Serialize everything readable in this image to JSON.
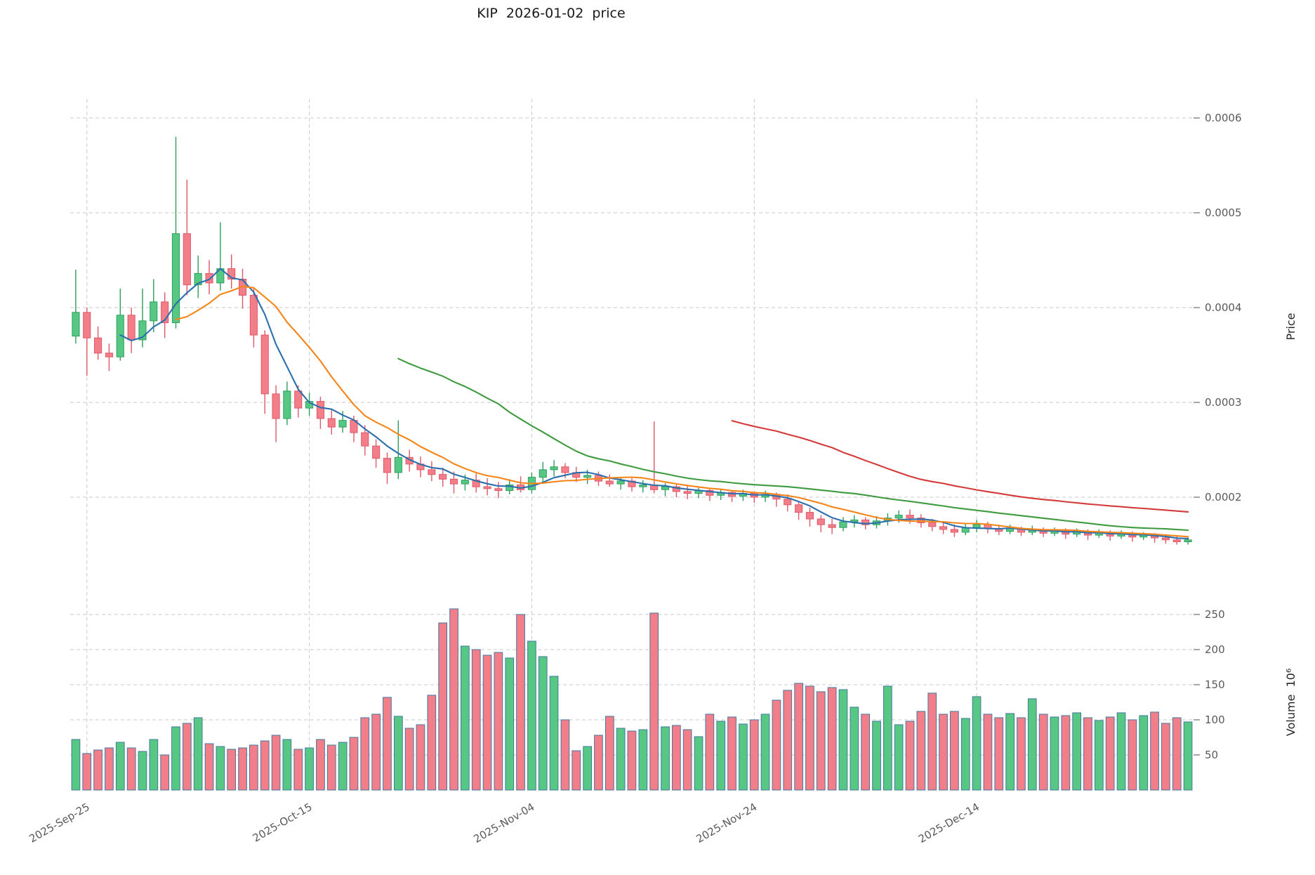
{
  "chart_data": {
    "type": "candlestick",
    "title": "KIP  2026-01-02  price",
    "price_axis": {
      "label": "Price",
      "min": 0.00014,
      "max": 0.00062,
      "ticks": [
        0.0002,
        0.0003,
        0.0004,
        0.0005,
        0.0006
      ],
      "tick_labels": [
        "0.0002",
        "0.0003",
        "0.0004",
        "0.0005",
        "0.0006"
      ]
    },
    "volume_axis": {
      "label": "Volume  10⁶",
      "unit": 1000000,
      "min": 0,
      "max": 250,
      "ticks": [
        50,
        100,
        150,
        200,
        250
      ],
      "tick_labels": [
        "50",
        "100",
        "150",
        "200",
        "250"
      ]
    },
    "x_axis": {
      "tick_indices": [
        1,
        21,
        41,
        61,
        81
      ],
      "tick_labels": [
        "2025-Sep-25",
        "2025-Oct-15",
        "2025-Nov-04",
        "2025-Nov-24",
        "2025-Dec-14"
      ]
    },
    "moving_averages": [
      {
        "window": 5,
        "color": "#2b6fad"
      },
      {
        "window": 10,
        "color": "#f58518"
      },
      {
        "window": 30,
        "color": "#3f9b3f"
      },
      {
        "window": 60,
        "color": "#d43a3a"
      }
    ],
    "colors": {
      "up": "#57c784",
      "up_edge": "#2e9e5b",
      "down": "#f27e8a",
      "down_edge": "#df5866",
      "volume_edge": "#46789f",
      "grid": "#c9c9c9",
      "tick_text": "#595959",
      "axis_title_text": "#262626"
    },
    "candle_columns": [
      "date",
      "open",
      "high",
      "low",
      "close",
      "volume_millions"
    ],
    "candles": [
      [
        "2025-09-24",
        0.00037,
        0.00044,
        0.000362,
        0.000395,
        72
      ],
      [
        "2025-09-25",
        0.000395,
        0.0004,
        0.000328,
        0.000368,
        52
      ],
      [
        "2025-09-26",
        0.000368,
        0.00038,
        0.000345,
        0.000352,
        57
      ],
      [
        "2025-09-27",
        0.000352,
        0.000362,
        0.000333,
        0.000348,
        60
      ],
      [
        "2025-09-28",
        0.000348,
        0.00042,
        0.000344,
        0.000392,
        68
      ],
      [
        "2025-09-29",
        0.000392,
        0.0004,
        0.000352,
        0.000366,
        60
      ],
      [
        "2025-09-30",
        0.000366,
        0.00042,
        0.000358,
        0.000386,
        55
      ],
      [
        "2025-10-01",
        0.000386,
        0.00043,
        0.000374,
        0.000406,
        72
      ],
      [
        "2025-10-02",
        0.000406,
        0.000416,
        0.000368,
        0.000384,
        50
      ],
      [
        "2025-10-03",
        0.000384,
        0.00058,
        0.000378,
        0.000478,
        90
      ],
      [
        "2025-10-04",
        0.000478,
        0.000535,
        0.000413,
        0.000424,
        95
      ],
      [
        "2025-10-05",
        0.000424,
        0.000455,
        0.00041,
        0.000436,
        103
      ],
      [
        "2025-10-06",
        0.000436,
        0.00045,
        0.000414,
        0.000426,
        66
      ],
      [
        "2025-10-07",
        0.000426,
        0.00049,
        0.000418,
        0.000441,
        62
      ],
      [
        "2025-10-08",
        0.000441,
        0.000456,
        0.00042,
        0.00043,
        58
      ],
      [
        "2025-10-09",
        0.00043,
        0.000441,
        0.000399,
        0.000413,
        60
      ],
      [
        "2025-10-10",
        0.000413,
        0.00042,
        0.000358,
        0.000371,
        64
      ],
      [
        "2025-10-11",
        0.000371,
        0.000376,
        0.000288,
        0.000309,
        70
      ],
      [
        "2025-10-12",
        0.000309,
        0.000318,
        0.000258,
        0.000283,
        78
      ],
      [
        "2025-10-13",
        0.000283,
        0.000322,
        0.000276,
        0.000312,
        72
      ],
      [
        "2025-10-14",
        0.000312,
        0.000318,
        0.000284,
        0.000294,
        58
      ],
      [
        "2025-10-15",
        0.000294,
        0.00031,
        0.000286,
        0.000301,
        60
      ],
      [
        "2025-10-16",
        0.000301,
        0.000306,
        0.000272,
        0.000283,
        72
      ],
      [
        "2025-10-17",
        0.000283,
        0.000292,
        0.000266,
        0.000274,
        64
      ],
      [
        "2025-10-18",
        0.000274,
        0.000291,
        0.000268,
        0.000281,
        68
      ],
      [
        "2025-10-19",
        0.000281,
        0.000286,
        0.000258,
        0.000268,
        75
      ],
      [
        "2025-10-20",
        0.000268,
        0.000276,
        0.000244,
        0.000254,
        103
      ],
      [
        "2025-10-21",
        0.000254,
        0.000261,
        0.000231,
        0.000241,
        108
      ],
      [
        "2025-10-22",
        0.000241,
        0.000247,
        0.000214,
        0.000226,
        132
      ],
      [
        "2025-10-23",
        0.000226,
        0.000281,
        0.000219,
        0.000242,
        105
      ],
      [
        "2025-10-24",
        0.000242,
        0.00025,
        0.000227,
        0.000235,
        88
      ],
      [
        "2025-10-25",
        0.000235,
        0.000243,
        0.000221,
        0.000229,
        93
      ],
      [
        "2025-10-26",
        0.000229,
        0.000238,
        0.000217,
        0.000224,
        135
      ],
      [
        "2025-10-27",
        0.000224,
        0.000231,
        0.000211,
        0.000219,
        238
      ],
      [
        "2025-10-28",
        0.000219,
        0.000227,
        0.000204,
        0.000214,
        258
      ],
      [
        "2025-10-29",
        0.000214,
        0.000224,
        0.000207,
        0.000218,
        205
      ],
      [
        "2025-10-30",
        0.000218,
        0.000225,
        0.000205,
        0.000211,
        200
      ],
      [
        "2025-10-31",
        0.000211,
        0.00022,
        0.000202,
        0.000209,
        192
      ],
      [
        "2025-11-01",
        0.000209,
        0.000216,
        0.000199,
        0.000207,
        196
      ],
      [
        "2025-11-02",
        0.000207,
        0.000219,
        0.000203,
        0.000213,
        188
      ],
      [
        "2025-11-03",
        0.000213,
        0.000222,
        0.000205,
        0.000208,
        250
      ],
      [
        "2025-11-04",
        0.000208,
        0.000226,
        0.000204,
        0.000221,
        212
      ],
      [
        "2025-11-05",
        0.000221,
        0.000237,
        0.000216,
        0.000229,
        190
      ],
      [
        "2025-11-06",
        0.000229,
        0.000239,
        0.000222,
        0.000232,
        162
      ],
      [
        "2025-11-07",
        0.000232,
        0.000236,
        0.00022,
        0.000226,
        100
      ],
      [
        "2025-11-08",
        0.000226,
        0.000232,
        0.000216,
        0.000221,
        56
      ],
      [
        "2025-11-09",
        0.000221,
        0.000229,
        0.000214,
        0.000223,
        62
      ],
      [
        "2025-11-10",
        0.000223,
        0.000227,
        0.000212,
        0.000217,
        78
      ],
      [
        "2025-11-11",
        0.000217,
        0.000224,
        0.000211,
        0.000214,
        105
      ],
      [
        "2025-11-12",
        0.000214,
        0.000221,
        0.000208,
        0.000217,
        88
      ],
      [
        "2025-11-13",
        0.000217,
        0.00022,
        0.000206,
        0.000211,
        84
      ],
      [
        "2025-11-14",
        0.000211,
        0.000218,
        0.000205,
        0.000213,
        86
      ],
      [
        "2025-11-15",
        0.000213,
        0.00028,
        0.000204,
        0.000208,
        252
      ],
      [
        "2025-11-16",
        0.000208,
        0.000215,
        0.000201,
        0.000211,
        90
      ],
      [
        "2025-11-17",
        0.000211,
        0.000214,
        0.0002,
        0.000206,
        92
      ],
      [
        "2025-11-18",
        0.000206,
        0.000212,
        0.000198,
        0.000204,
        86
      ],
      [
        "2025-11-19",
        0.000204,
        0.00021,
        0.000199,
        0.000207,
        76
      ],
      [
        "2025-11-20",
        0.000207,
        0.00021,
        0.000196,
        0.000202,
        108
      ],
      [
        "2025-11-21",
        0.000202,
        0.000209,
        0.000197,
        0.000205,
        98
      ],
      [
        "2025-11-22",
        0.000205,
        0.000207,
        0.000195,
        0.000201,
        104
      ],
      [
        "2025-11-23",
        0.000201,
        0.000208,
        0.000196,
        0.000204,
        94
      ],
      [
        "2025-11-24",
        0.000204,
        0.000206,
        0.000194,
        0.0002,
        100
      ],
      [
        "2025-11-25",
        0.0002,
        0.000207,
        0.000195,
        0.000203,
        108
      ],
      [
        "2025-11-26",
        0.000203,
        0.000205,
        0.00019,
        0.000198,
        128
      ],
      [
        "2025-11-27",
        0.000198,
        0.000203,
        0.000185,
        0.000192,
        142
      ],
      [
        "2025-11-28",
        0.000192,
        0.000195,
        0.000176,
        0.000184,
        152
      ],
      [
        "2025-11-29",
        0.000184,
        0.000189,
        0.000169,
        0.000177,
        148
      ],
      [
        "2025-11-30",
        0.000177,
        0.000181,
        0.000163,
        0.000171,
        140
      ],
      [
        "2025-12-01",
        0.000171,
        0.000177,
        0.000161,
        0.000168,
        146
      ],
      [
        "2025-12-02",
        0.000168,
        0.000179,
        0.000164,
        0.000174,
        143
      ],
      [
        "2025-12-03",
        0.000174,
        0.000181,
        0.000168,
        0.000176,
        118
      ],
      [
        "2025-12-04",
        0.000176,
        0.000179,
        0.000166,
        0.000171,
        108
      ],
      [
        "2025-12-05",
        0.000171,
        0.00018,
        0.000167,
        0.000175,
        98
      ],
      [
        "2025-12-06",
        0.000175,
        0.000183,
        0.00017,
        0.000178,
        148
      ],
      [
        "2025-12-07",
        0.000178,
        0.000186,
        0.000173,
        0.000181,
        93
      ],
      [
        "2025-12-08",
        0.000181,
        0.000187,
        0.000172,
        0.000178,
        98
      ],
      [
        "2025-12-09",
        0.000178,
        0.000182,
        0.000168,
        0.000173,
        112
      ],
      [
        "2025-12-10",
        0.000173,
        0.000177,
        0.000164,
        0.000169,
        138
      ],
      [
        "2025-12-11",
        0.000169,
        0.000174,
        0.000161,
        0.000166,
        108
      ],
      [
        "2025-12-12",
        0.000166,
        0.000171,
        0.000158,
        0.000163,
        112
      ],
      [
        "2025-12-13",
        0.000163,
        0.000172,
        0.00016,
        0.000168,
        102
      ],
      [
        "2025-12-14",
        0.000168,
        0.000176,
        0.000163,
        0.000171,
        133
      ],
      [
        "2025-12-15",
        0.000171,
        0.000174,
        0.000162,
        0.000167,
        108
      ],
      [
        "2025-12-16",
        0.000167,
        0.000171,
        0.00016,
        0.000164,
        103
      ],
      [
        "2025-12-17",
        0.000164,
        0.000171,
        0.000161,
        0.000167,
        109
      ],
      [
        "2025-12-18",
        0.000167,
        0.000169,
        0.000159,
        0.000163,
        103
      ],
      [
        "2025-12-19",
        0.000163,
        0.00017,
        0.00016,
        0.000166,
        130
      ],
      [
        "2025-12-20",
        0.000166,
        0.000168,
        0.000158,
        0.000162,
        108
      ],
      [
        "2025-12-21",
        0.000162,
        0.000168,
        0.000159,
        0.000165,
        104
      ],
      [
        "2025-12-22",
        0.000165,
        0.000167,
        0.000156,
        0.000161,
        106
      ],
      [
        "2025-12-23",
        0.000161,
        0.000167,
        0.000158,
        0.000164,
        110
      ],
      [
        "2025-12-24",
        0.000164,
        0.000166,
        0.000155,
        0.00016,
        103
      ],
      [
        "2025-12-25",
        0.00016,
        0.000166,
        0.000157,
        0.000163,
        99
      ],
      [
        "2025-12-26",
        0.000163,
        0.000165,
        0.000154,
        0.000159,
        104
      ],
      [
        "2025-12-27",
        0.000159,
        0.000165,
        0.000156,
        0.000162,
        110
      ],
      [
        "2025-12-28",
        0.000162,
        0.000164,
        0.000153,
        0.000158,
        100
      ],
      [
        "2025-12-29",
        0.000158,
        0.000163,
        0.000155,
        0.000161,
        106
      ],
      [
        "2025-12-30",
        0.000161,
        0.000162,
        0.000152,
        0.000157,
        111
      ],
      [
        "2025-12-31",
        0.000157,
        0.000161,
        0.000151,
        0.000155,
        95
      ],
      [
        "2026-01-01",
        0.000155,
        0.000159,
        0.00015,
        0.000153,
        103
      ],
      [
        "2026-01-02",
        0.000153,
        0.000158,
        0.00015,
        0.000155,
        97
      ]
    ]
  }
}
